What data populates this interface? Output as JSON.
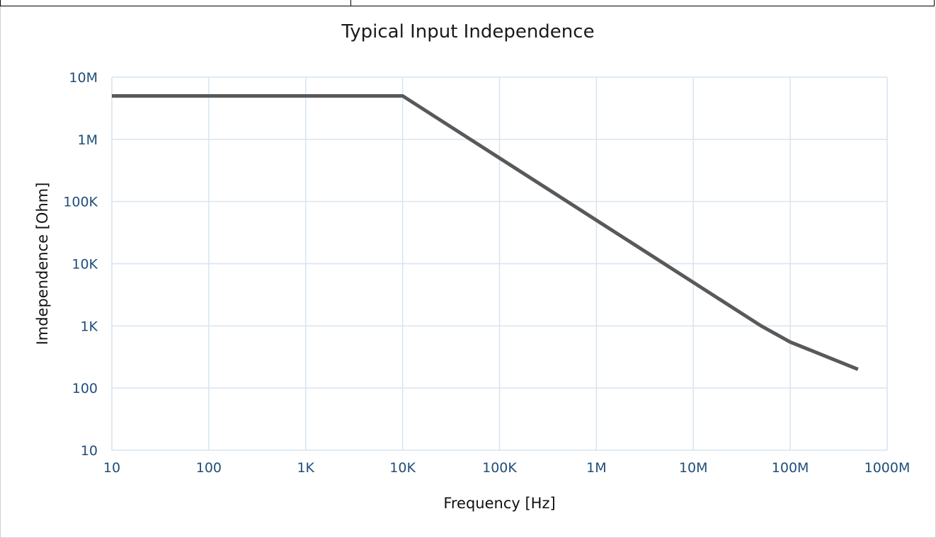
{
  "chart_data": {
    "type": "line",
    "title": "Typical Input Independence",
    "xlabel": "Frequency [Hz]",
    "ylabel": "Imdependence [Ohm]",
    "x_scale": "log",
    "y_scale": "log",
    "xlim": [
      10,
      1000000000
    ],
    "ylim": [
      10,
      10000000
    ],
    "x_ticks": [
      {
        "value": 10,
        "label": "10"
      },
      {
        "value": 100,
        "label": "100"
      },
      {
        "value": 1000,
        "label": "1K"
      },
      {
        "value": 10000,
        "label": "10K"
      },
      {
        "value": 100000,
        "label": "100K"
      },
      {
        "value": 1000000,
        "label": "1M"
      },
      {
        "value": 10000000,
        "label": "10M"
      },
      {
        "value": 100000000,
        "label": "100M"
      },
      {
        "value": 1000000000,
        "label": "1000M"
      }
    ],
    "y_ticks": [
      {
        "value": 10,
        "label": "10"
      },
      {
        "value": 100,
        "label": "100"
      },
      {
        "value": 1000,
        "label": "1K"
      },
      {
        "value": 10000,
        "label": "10K"
      },
      {
        "value": 100000,
        "label": "100K"
      },
      {
        "value": 1000000,
        "label": "1M"
      },
      {
        "value": 10000000,
        "label": "10M"
      }
    ],
    "grid": true,
    "line_color": "#595959",
    "grid_color": "#d6e4f0",
    "series": [
      {
        "x": [
          10,
          10000,
          100000,
          1000000,
          10000000,
          50000000,
          100000000,
          500000000
        ],
        "y": [
          5000000,
          5000000,
          500000,
          50000,
          5000,
          1000,
          550,
          200
        ]
      }
    ]
  }
}
